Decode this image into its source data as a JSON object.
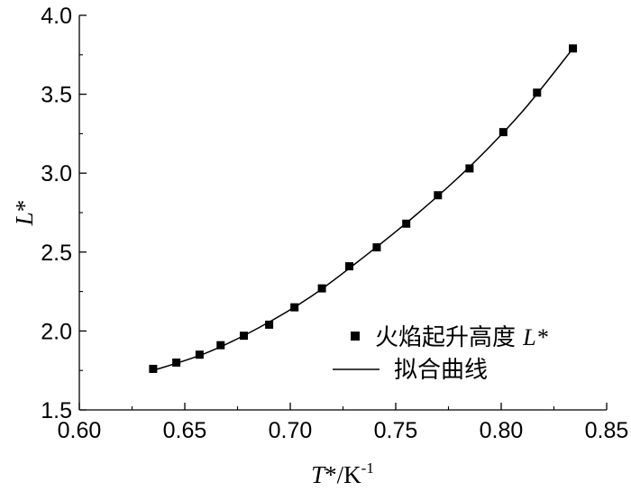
{
  "chart_data": {
    "type": "scatter",
    "title": "",
    "xlabel": "T*/K-1",
    "xlabel_parts": {
      "var": "T",
      "star": "*",
      "unit": "/K",
      "sup": "-1"
    },
    "ylabel": "L*",
    "ylabel_parts": {
      "var": "L",
      "star": "*"
    },
    "xlim": [
      0.6,
      0.85
    ],
    "ylim": [
      1.5,
      4.0
    ],
    "xticks": [
      "0.60",
      "0.65",
      "0.70",
      "0.75",
      "0.80",
      "0.85"
    ],
    "yticks": [
      "1.5",
      "2.0",
      "2.5",
      "3.0",
      "3.5",
      "4.0"
    ],
    "grid": false,
    "legend_position": "lower-right",
    "series": [
      {
        "name": "火焰起升高度 L*",
        "name_parts": {
          "text": "火焰起升高度 ",
          "var": "L*"
        },
        "marker": "square",
        "color": "#000000",
        "x": [
          0.635,
          0.646,
          0.657,
          0.667,
          0.678,
          0.69,
          0.702,
          0.715,
          0.728,
          0.741,
          0.755,
          0.77,
          0.785,
          0.801,
          0.817,
          0.834
        ],
        "y": [
          1.76,
          1.8,
          1.85,
          1.91,
          1.97,
          2.04,
          2.15,
          2.27,
          2.41,
          2.53,
          2.68,
          2.86,
          3.03,
          3.26,
          3.51,
          3.79
        ]
      },
      {
        "name": "拟合曲线",
        "style": "line",
        "color": "#000000",
        "x": [
          0.635,
          0.66,
          0.685,
          0.71,
          0.735,
          0.76,
          0.785,
          0.81,
          0.834
        ],
        "y": [
          1.75,
          1.86,
          2.02,
          2.22,
          2.47,
          2.74,
          3.04,
          3.39,
          3.79
        ]
      }
    ]
  }
}
